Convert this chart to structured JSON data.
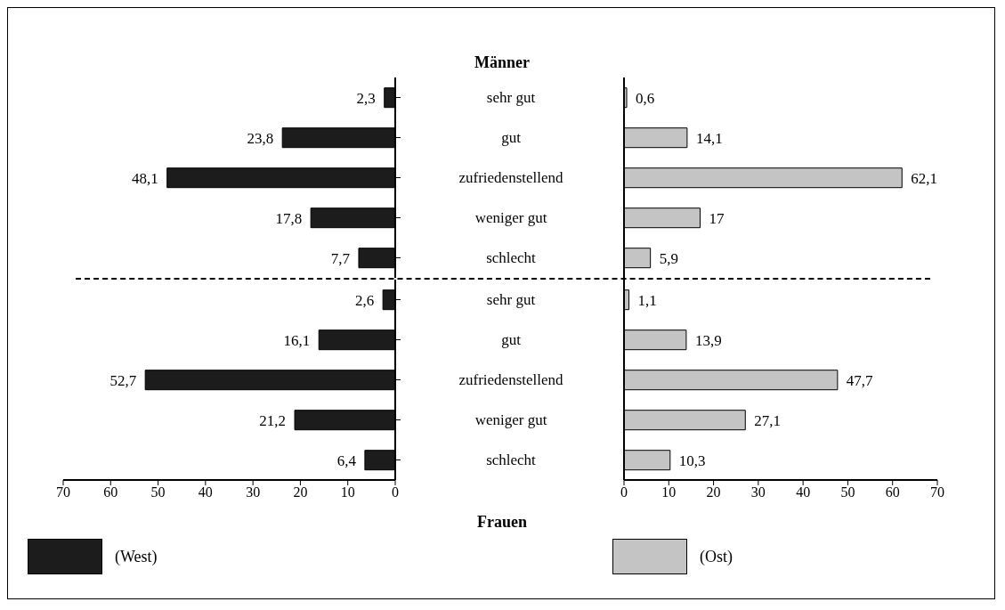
{
  "chart_data": [
    {
      "type": "bar",
      "orientation": "horizontal",
      "title": "Männer",
      "categories": [
        "sehr gut",
        "gut",
        "zufriedenstellend",
        "weniger gut",
        "schlecht"
      ],
      "values": [
        2.3,
        23.8,
        48.1,
        17.8,
        7.7
      ],
      "value_labels": [
        "2,3",
        "23,8",
        "48,1",
        "17,8",
        "7,7"
      ],
      "color": "#1c1c1c",
      "xlim": [
        70,
        0
      ],
      "xticks": [
        70,
        60,
        50,
        40,
        30,
        20,
        10,
        0
      ],
      "tick_labels": "y"
    },
    {
      "type": "bar",
      "orientation": "horizontal",
      "categories": [
        "sehr gut",
        "gut",
        "zufriedenstellend",
        "weniger gut",
        "schlecht"
      ],
      "values": [
        0.6,
        14.1,
        62.1,
        17,
        5.9
      ],
      "value_labels": [
        "0,6",
        "14,1",
        "62,1",
        "17",
        "5,9"
      ],
      "color": "#c4c4c4",
      "xlim": [
        0,
        70
      ],
      "xticks": [
        0,
        10,
        20,
        30,
        40,
        50,
        60,
        70
      ],
      "tick_labels": false
    },
    {
      "type": "bar",
      "orientation": "horizontal",
      "title": "Frauen",
      "categories": [
        "sehr gut",
        "gut",
        "zufriedenstellend",
        "weniger gut",
        "schlecht"
      ],
      "series": [
        {
          "name": "(West)",
          "color": "#1c1c1c",
          "values": [
            2.6,
            16.1,
            52.7,
            21.2,
            6.4
          ],
          "value_labels": [
            "2,6",
            "16,1",
            "52,7",
            "21,2",
            "6,4"
          ]
        }
      ],
      "xlim": [
        70,
        0
      ],
      "xticks": [
        70,
        60,
        50,
        40,
        30,
        20,
        10,
        0
      ],
      "legend": "bottom"
    },
    {
      "type": "bar",
      "orientation": "horizontal",
      "categories": [
        "sehr gut",
        "gut",
        "zufriedenstellend",
        "weniger gut",
        "schlecht"
      ],
      "series": [
        {
          "name": "(Ost)",
          "color": "#c4c4c4",
          "values": [
            1.1,
            13.9,
            47.7,
            27.1,
            10.3
          ],
          "value_labels": [
            "1,1",
            "13,9",
            "47,7",
            "27,1",
            "10,3"
          ]
        }
      ],
      "xlim": [
        0,
        70
      ],
      "xticks": [
        0,
        10,
        20,
        30,
        40,
        50,
        60,
        70
      ],
      "tick_labels": "x",
      "legend": "bottom"
    }
  ]
}
